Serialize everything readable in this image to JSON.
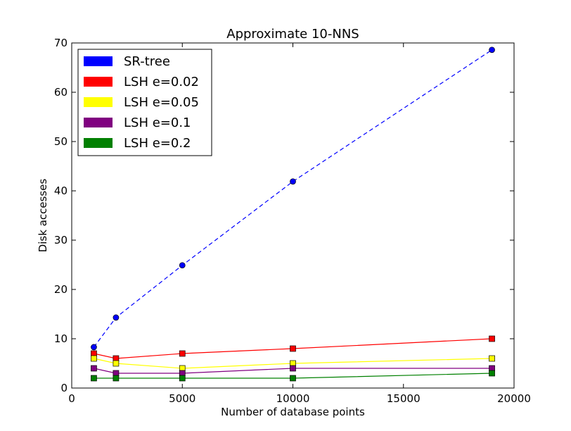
{
  "chart_data": {
    "type": "line",
    "title": "Approximate 10-NNS",
    "xlabel": "Number of database points",
    "ylabel": "Disk accesses",
    "xlim": [
      0,
      20000
    ],
    "ylim": [
      0,
      70
    ],
    "x_ticks": [
      0,
      5000,
      10000,
      15000,
      20000
    ],
    "y_ticks": [
      0,
      10,
      20,
      30,
      40,
      50,
      60,
      70
    ],
    "x_tick_labels": [
      "0",
      "5000",
      "10000",
      "15000",
      "20000"
    ],
    "y_tick_labels": [
      "0",
      "10",
      "20",
      "30",
      "40",
      "50",
      "60",
      "70"
    ],
    "grid": false,
    "legend_position": "top-left",
    "x": [
      1000,
      2000,
      5000,
      10000,
      19000
    ],
    "series": [
      {
        "name": "SR-tree",
        "color": "#0000ff",
        "marker": "circle",
        "dashed": true,
        "values": [
          8.3,
          14.3,
          24.9,
          41.9,
          68.6
        ]
      },
      {
        "name": "LSH e=0.02",
        "color": "#ff0000",
        "marker": "square",
        "dashed": false,
        "values": [
          7,
          6,
          7,
          8,
          10
        ]
      },
      {
        "name": "LSH e=0.05",
        "color": "#ffff00",
        "marker": "square",
        "dashed": false,
        "values": [
          6,
          5,
          4,
          5,
          6
        ]
      },
      {
        "name": "LSH e=0.1",
        "color": "#800080",
        "marker": "square",
        "dashed": false,
        "values": [
          4,
          3,
          3,
          4,
          4
        ]
      },
      {
        "name": "LSH e=0.2",
        "color": "#008000",
        "marker": "square",
        "dashed": false,
        "values": [
          2,
          2,
          2,
          2,
          3
        ]
      }
    ]
  }
}
